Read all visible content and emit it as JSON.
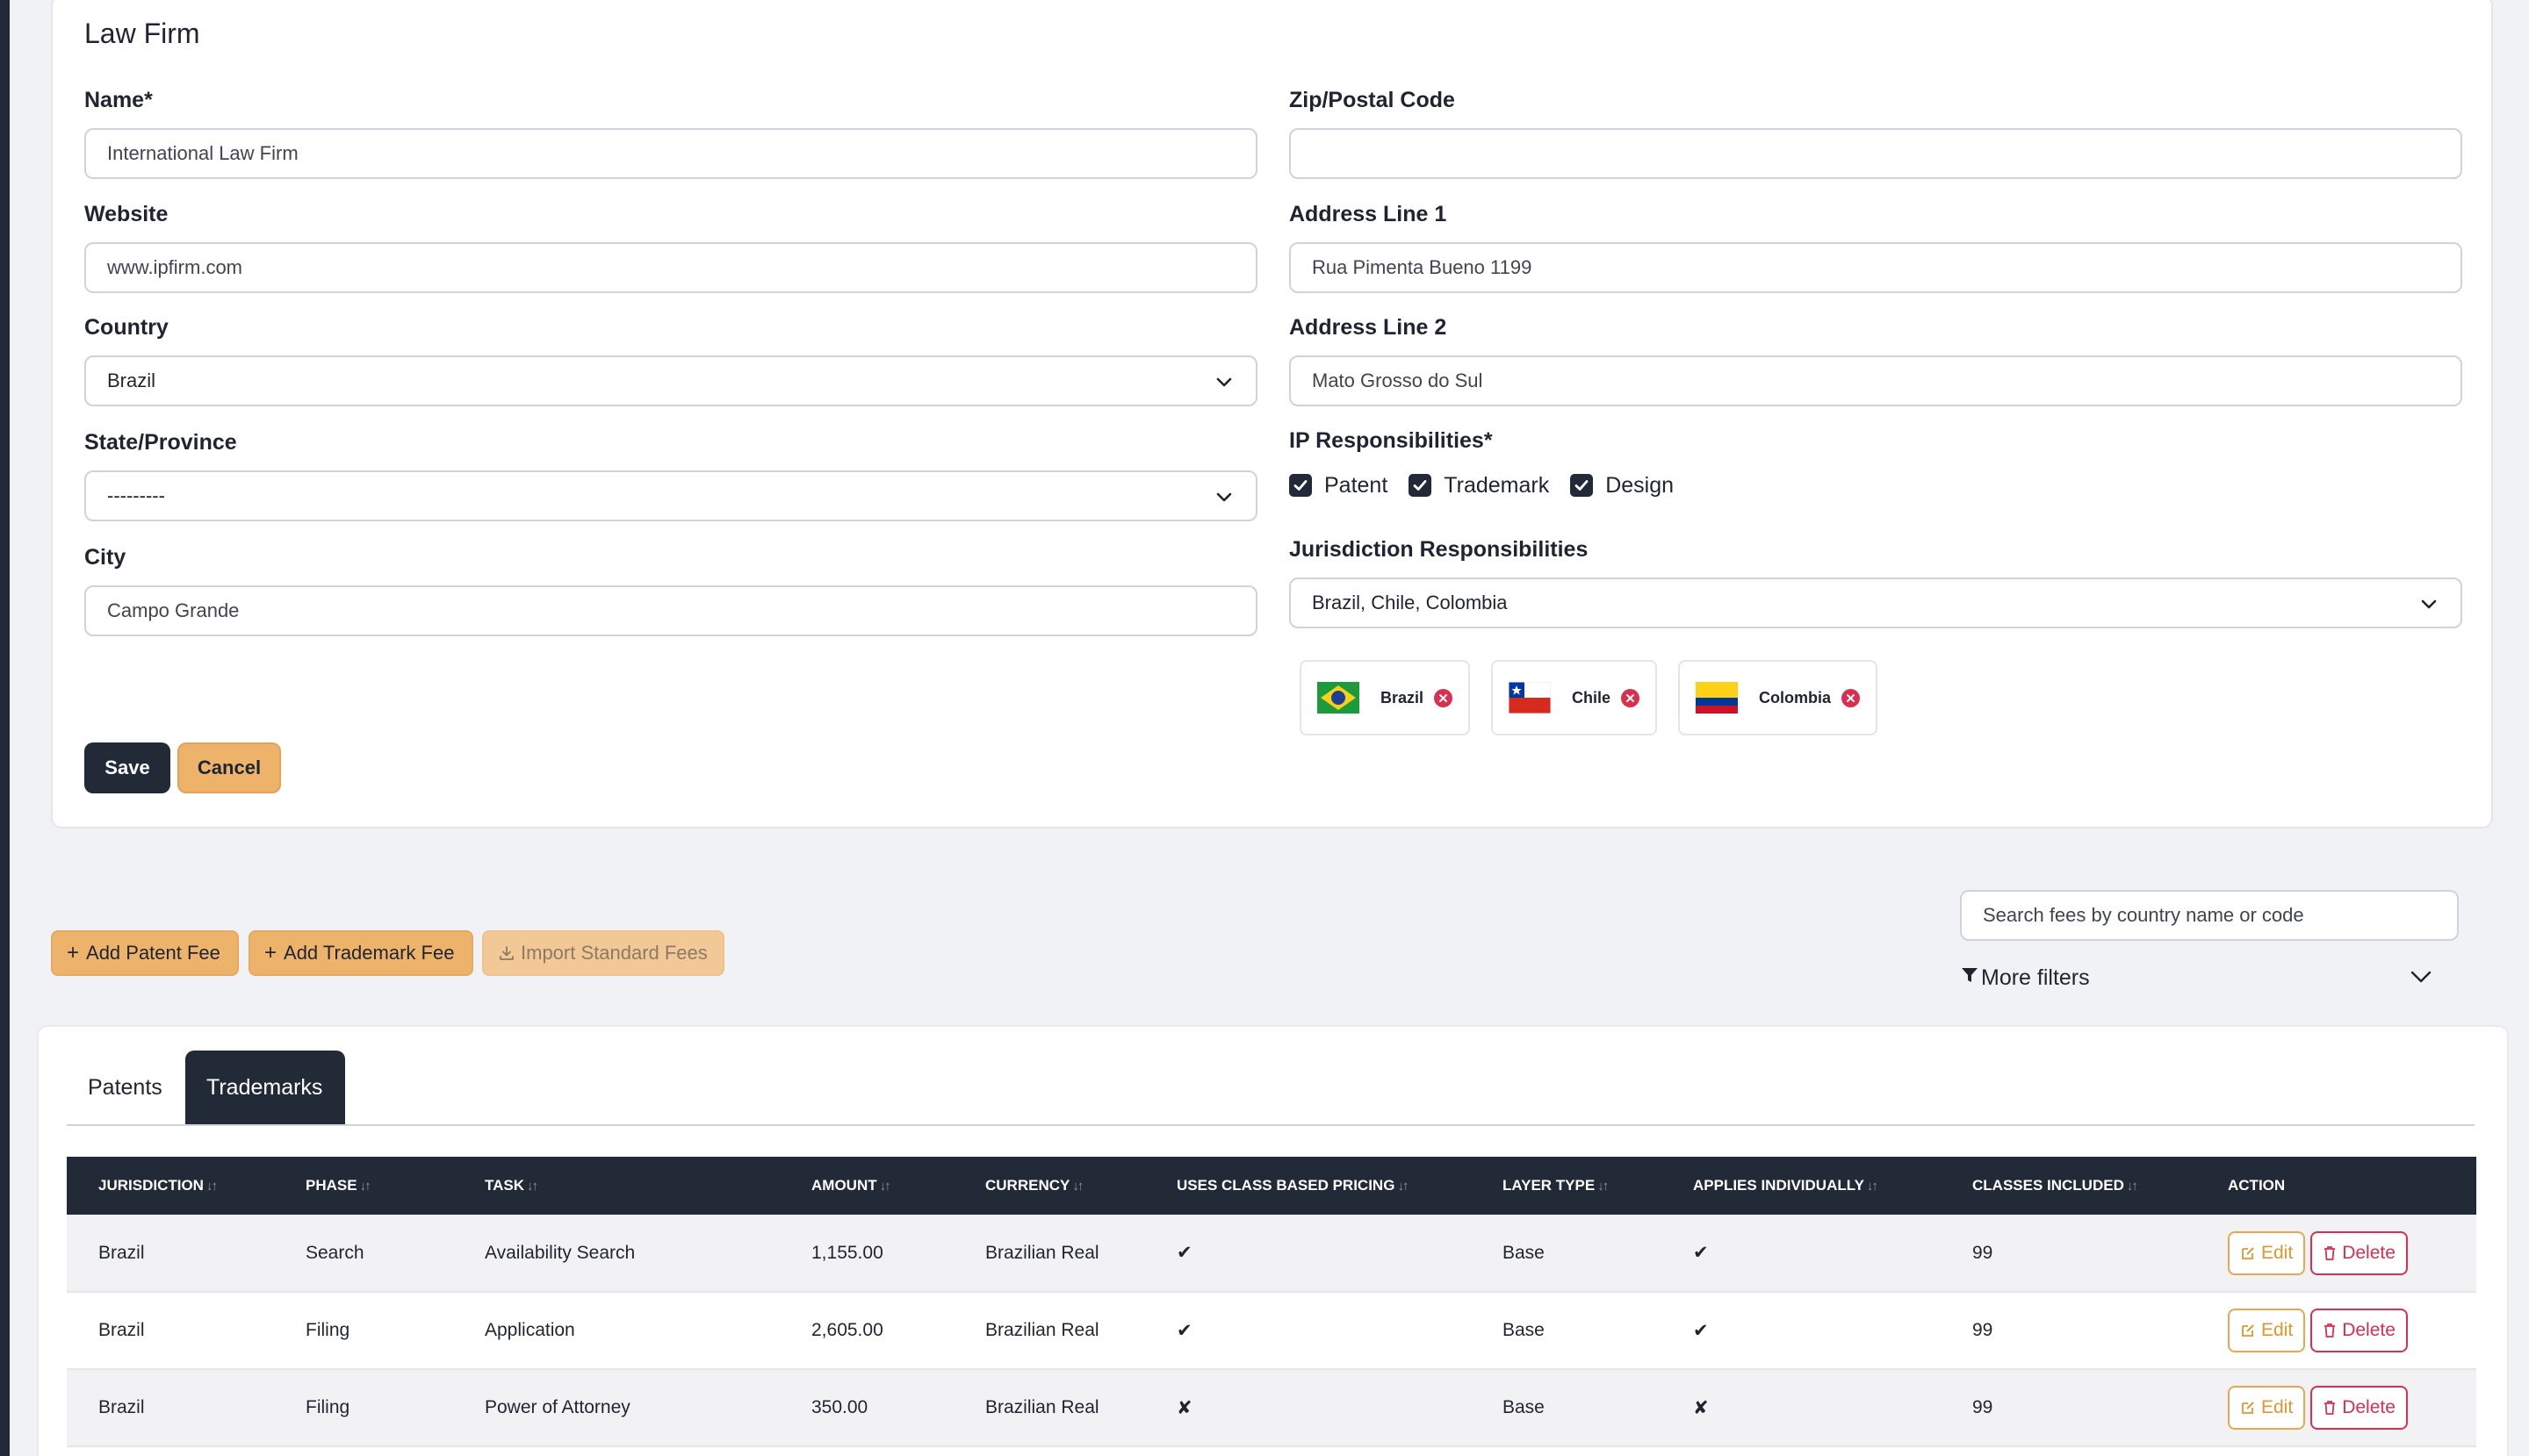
{
  "card": {
    "title": "Law Firm",
    "left": {
      "name_label": "Name*",
      "name_value": "International Law Firm",
      "website_label": "Website",
      "website_value": "www.ipfirm.com",
      "country_label": "Country",
      "country_value": "Brazil",
      "state_label": "State/Province",
      "state_value": "---------",
      "city_label": "City",
      "city_value": "Campo Grande"
    },
    "right": {
      "zip_label": "Zip/Postal Code",
      "zip_value": "",
      "addr1_label": "Address Line 1",
      "addr1_value": "Rua Pimenta Bueno 1199",
      "addr2_label": "Address Line 2",
      "addr2_value": "Mato Grosso do Sul",
      "ip_label": "IP Responsibilities*",
      "ip_options": [
        {
          "label": "Patent",
          "checked": true
        },
        {
          "label": "Trademark",
          "checked": true
        },
        {
          "label": "Design",
          "checked": true
        }
      ],
      "jurisdiction_label": "Jurisdiction Responsibilities",
      "jurisdiction_value": "Brazil, Chile, Colombia",
      "chips": [
        {
          "label": "Brazil",
          "flag": "brazil-flag"
        },
        {
          "label": "Chile",
          "flag": "chile-flag"
        },
        {
          "label": "Colombia",
          "flag": "colombia-flag"
        }
      ]
    },
    "save_label": "Save",
    "cancel_label": "Cancel"
  },
  "toolbar": {
    "add_patent_label": "Add Patent Fee",
    "add_trademark_label": "Add Trademark Fee",
    "import_label": "Import Standard Fees",
    "search_placeholder": "Search fees by country name or code",
    "more_filters_label": "More filters"
  },
  "tabs": [
    {
      "label": "Patents",
      "active": false
    },
    {
      "label": "Trademarks",
      "active": true
    }
  ],
  "table": {
    "headers": [
      "Jurisdiction",
      "Phase",
      "Task",
      "Amount",
      "Currency",
      "Uses Class Based Pricing",
      "Layer Type",
      "Applies Individually",
      "Classes Included",
      "Action"
    ],
    "rows": [
      {
        "jurisdiction": "Brazil",
        "phase": "Search",
        "task": "Availability Search",
        "amount": "1,155.00",
        "currency": "Brazilian Real",
        "class_pricing": "✔",
        "layer": "Base",
        "individually": "✔",
        "classes": "99"
      },
      {
        "jurisdiction": "Brazil",
        "phase": "Filing",
        "task": "Application",
        "amount": "2,605.00",
        "currency": "Brazilian Real",
        "class_pricing": "✔",
        "layer": "Base",
        "individually": "✔",
        "classes": "99"
      },
      {
        "jurisdiction": "Brazil",
        "phase": "Filing",
        "task": "Power of Attorney",
        "amount": "350.00",
        "currency": "Brazilian Real",
        "class_pricing": "✘",
        "layer": "Base",
        "individually": "✘",
        "classes": "99"
      }
    ],
    "edit_label": "Edit",
    "delete_label": "Delete"
  },
  "colors": {
    "dark": "#222a37",
    "accent": "#eeb36b",
    "danger": "#d9304f"
  }
}
